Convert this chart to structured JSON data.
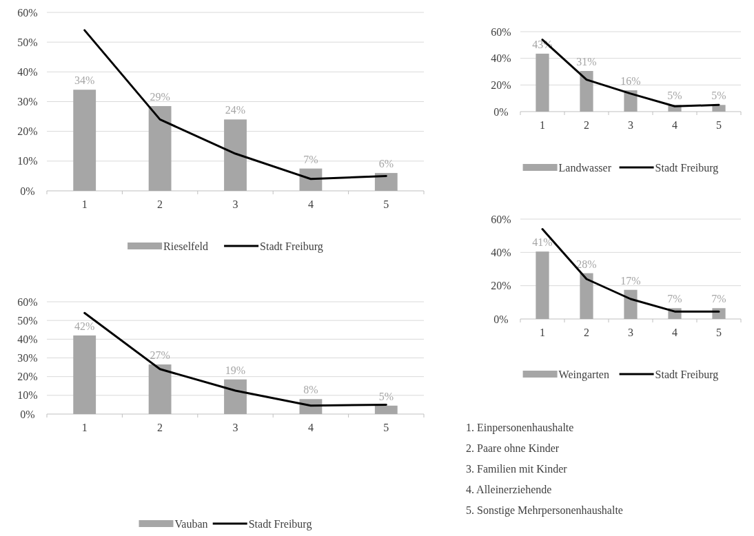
{
  "chart_data": [
    {
      "type": "bar",
      "categories": [
        "1",
        "2",
        "3",
        "4",
        "5"
      ],
      "ylim": [
        0,
        60
      ],
      "yticks": [
        {
          "value": 0,
          "label": "0%"
        },
        {
          "value": 10,
          "label": "10%"
        },
        {
          "value": 20,
          "label": "20%"
        },
        {
          "value": 30,
          "label": "30%"
        },
        {
          "value": 40,
          "label": "40%"
        },
        {
          "value": 50,
          "label": "50%"
        },
        {
          "value": 60,
          "label": "60%"
        }
      ],
      "grid": "y",
      "legend": "bottom",
      "series": [
        {
          "name": "Rieselfeld",
          "type": "bar",
          "color": "#a6a6a6",
          "values": [
            34,
            28.5,
            24,
            7.5,
            6
          ],
          "value_labels": [
            "34%",
            "29%",
            "24%",
            "7%",
            "6%"
          ]
        },
        {
          "name": "Stadt Freiburg",
          "type": "line",
          "color": "#000000",
          "values": [
            54,
            24,
            12.5,
            4,
            5
          ]
        }
      ]
    },
    {
      "type": "bar",
      "categories": [
        "1",
        "2",
        "3",
        "4",
        "5"
      ],
      "ylim": [
        0,
        60
      ],
      "yticks": [
        {
          "value": 0,
          "label": "0%"
        },
        {
          "value": 20,
          "label": "20%"
        },
        {
          "value": 40,
          "label": "40%"
        },
        {
          "value": 60,
          "label": "60%"
        }
      ],
      "grid": "y",
      "legend": "bottom",
      "series": [
        {
          "name": "Landwasser",
          "type": "bar",
          "color": "#a6a6a6",
          "values": [
            43.5,
            30.5,
            16,
            5,
            5
          ],
          "value_labels": [
            "43%",
            "31%",
            "16%",
            "5%",
            "5%"
          ]
        },
        {
          "name": "Stadt Freiburg",
          "type": "line",
          "color": "#000000",
          "values": [
            54,
            24,
            13.5,
            4,
            5
          ]
        }
      ]
    },
    {
      "type": "bar",
      "categories": [
        "1",
        "2",
        "3",
        "4",
        "5"
      ],
      "ylim": [
        0,
        60
      ],
      "yticks": [
        {
          "value": 0,
          "label": "0%"
        },
        {
          "value": 20,
          "label": "20%"
        },
        {
          "value": 40,
          "label": "40%"
        },
        {
          "value": 60,
          "label": "60%"
        }
      ],
      "grid": "y",
      "legend": "bottom",
      "series": [
        {
          "name": "Weingarten",
          "type": "bar",
          "color": "#a6a6a6",
          "values": [
            40.5,
            27.5,
            17.5,
            6.5,
            6.5
          ],
          "value_labels": [
            "41%",
            "28%",
            "17%",
            "7%",
            "7%"
          ]
        },
        {
          "name": "Stadt Freiburg",
          "type": "line",
          "color": "#000000",
          "values": [
            54,
            24,
            12,
            4.5,
            4.5
          ]
        }
      ]
    },
    {
      "type": "bar",
      "categories": [
        "1",
        "2",
        "3",
        "4",
        "5"
      ],
      "ylim": [
        0,
        60
      ],
      "yticks": [
        {
          "value": 0,
          "label": "0%"
        },
        {
          "value": 10,
          "label": "10%"
        },
        {
          "value": 20,
          "label": "20%"
        },
        {
          "value": 30,
          "label": "30%"
        },
        {
          "value": 40,
          "label": "40%"
        },
        {
          "value": 50,
          "label": "50%"
        },
        {
          "value": 60,
          "label": "60%"
        }
      ],
      "grid": "y",
      "legend": "bottom",
      "series": [
        {
          "name": "Vauban",
          "type": "bar",
          "color": "#a6a6a6",
          "values": [
            42,
            26.5,
            18.5,
            8,
            4.5
          ],
          "value_labels": [
            "42%",
            "27%",
            "19%",
            "8%",
            "5%"
          ]
        },
        {
          "name": "Stadt Freiburg",
          "type": "line",
          "color": "#000000",
          "values": [
            54,
            24,
            12.5,
            4.5,
            5
          ]
        }
      ]
    },
    {
      "type": "other",
      "annotations": [
        "1. Einpersonenhaushalte",
        "2. Paare ohne Kinder",
        "3. Familien mit Kinder",
        "4. Alleinerziehende",
        "5. Sonstige Mehrpersonenhaushalte"
      ]
    }
  ]
}
